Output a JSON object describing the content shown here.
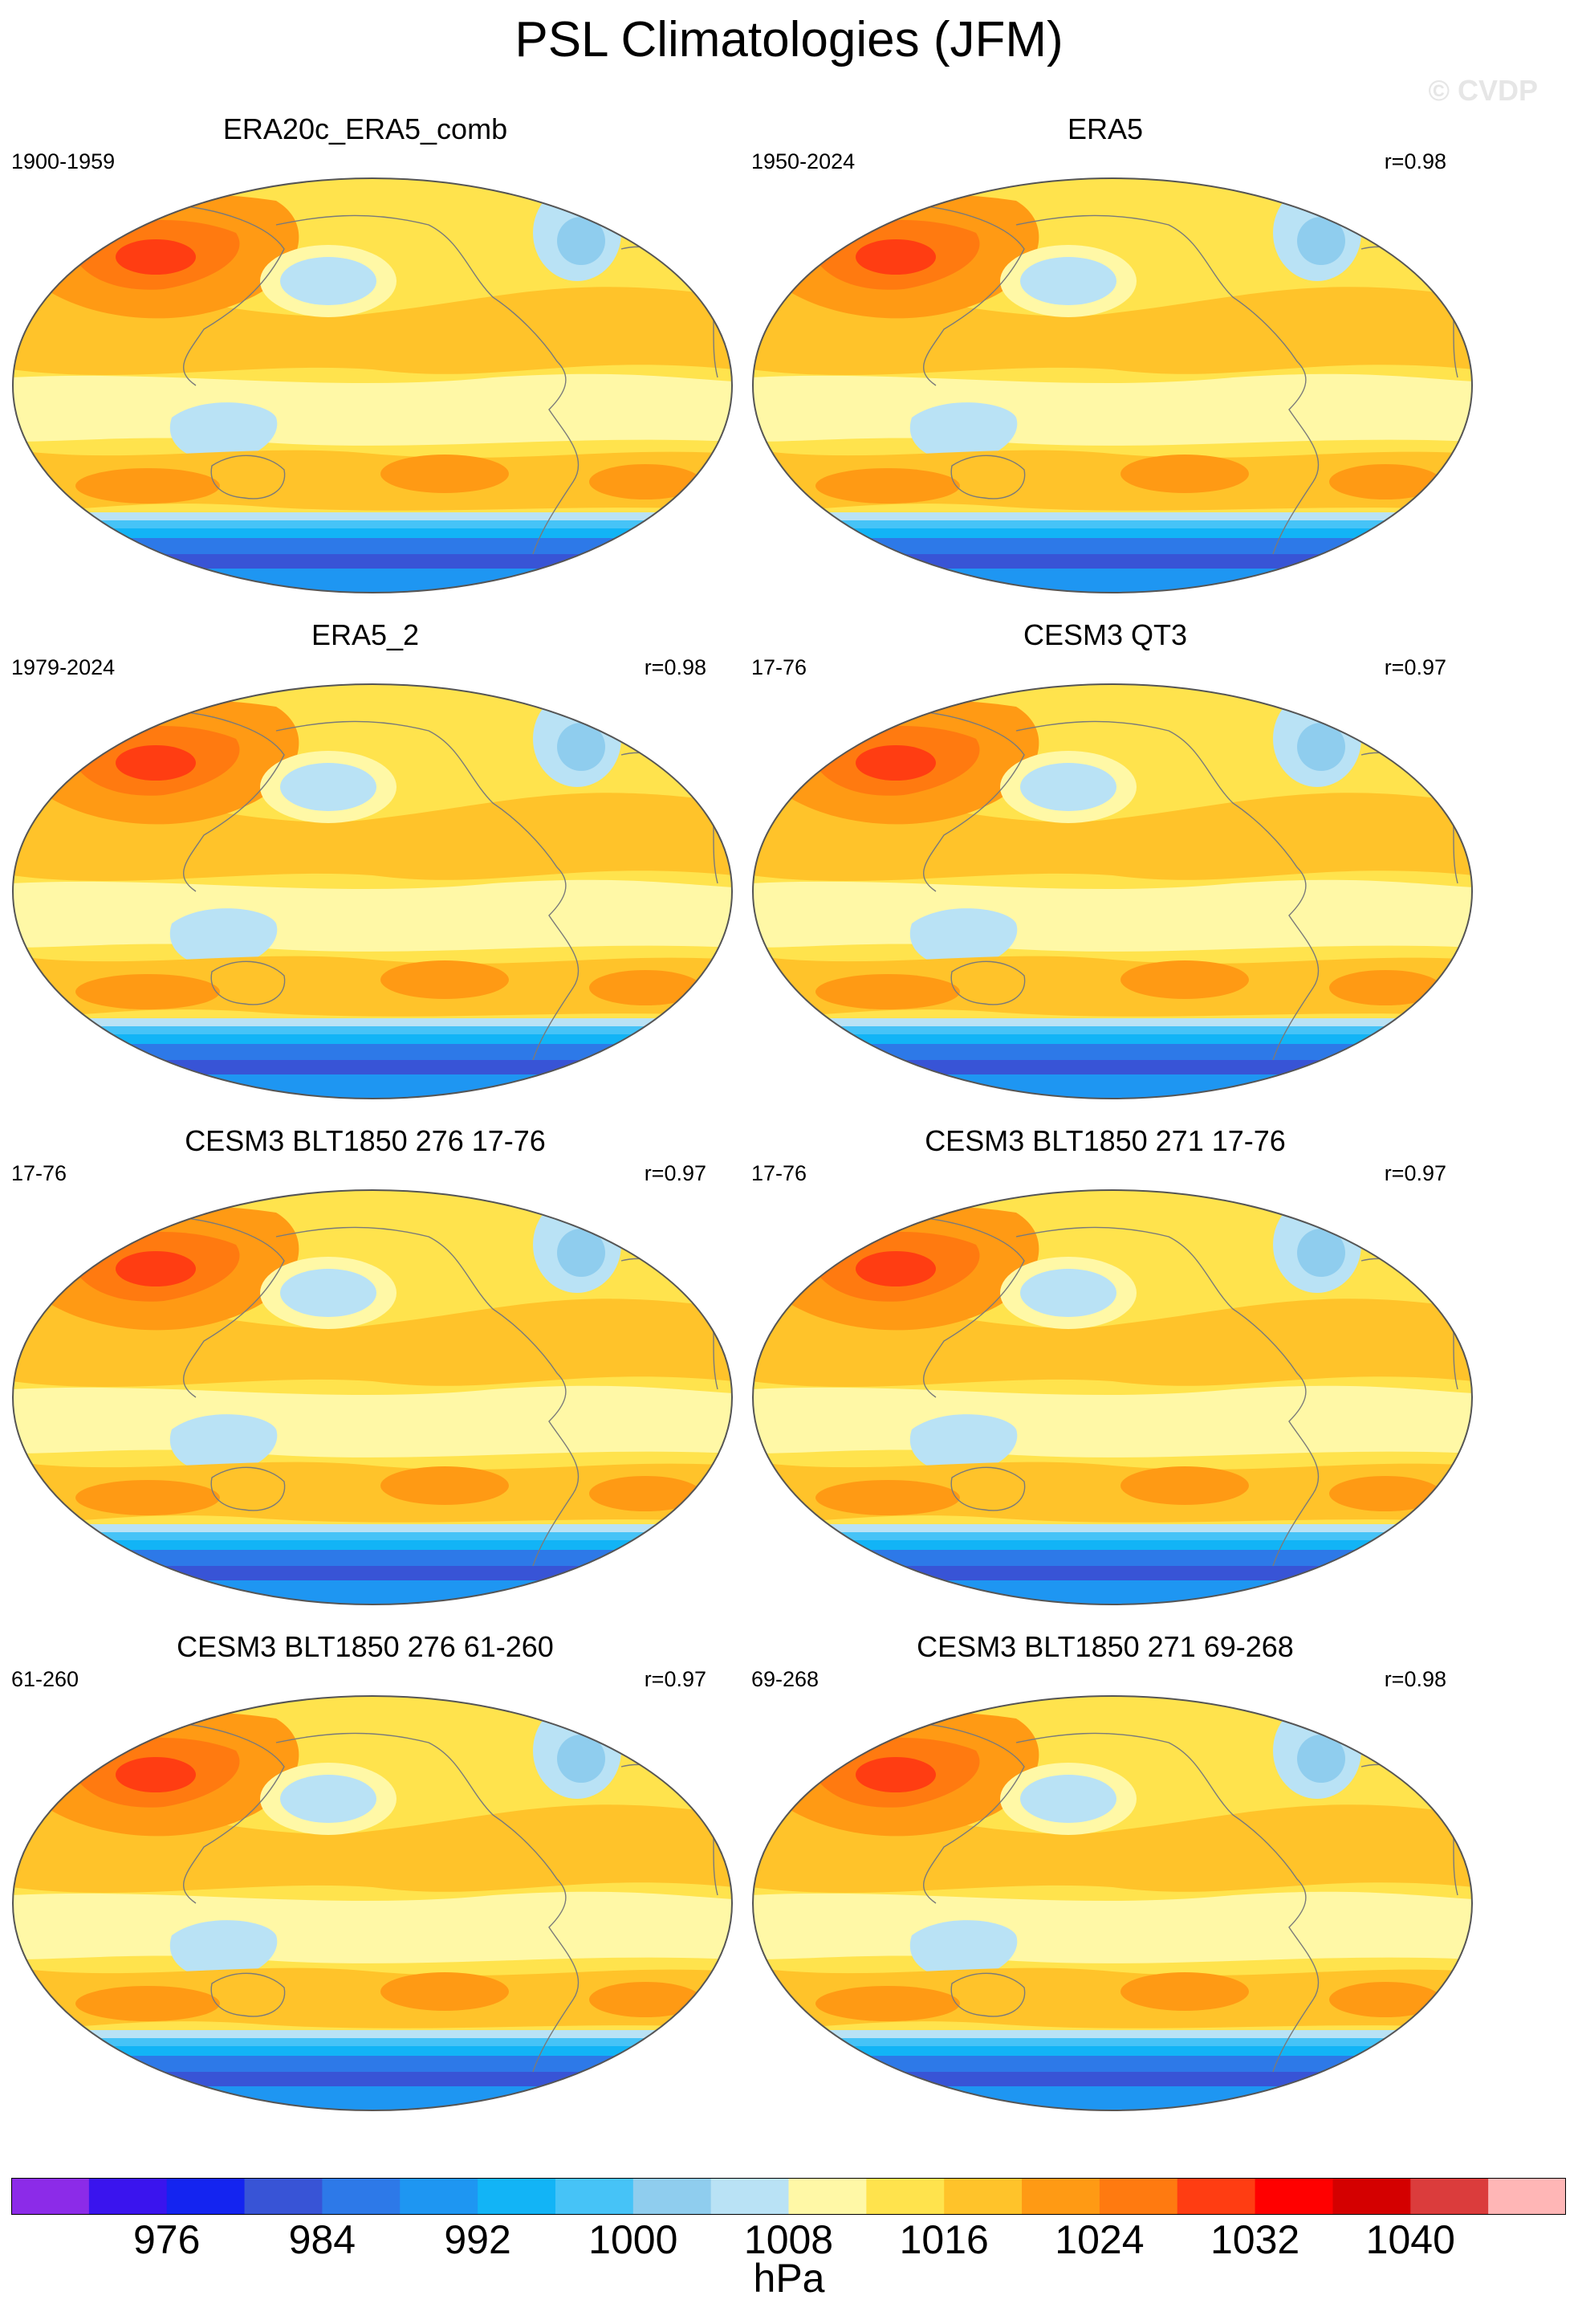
{
  "title": "PSL Climatologies (JFM)",
  "watermark": "© CVDP",
  "colors": {
    "levels": [
      "#8c2be8",
      "#3a14ee",
      "#1424f0",
      "#3854d6",
      "#2d79e8",
      "#1e96f2",
      "#12b4f6",
      "#46c3f7",
      "#8fcdee",
      "#b9e2f5",
      "#fff8a6",
      "#ffe34d",
      "#ffc32a",
      "#ff9a14",
      "#ff7a10",
      "#ff3d12",
      "#ff0000",
      "#d40000",
      "#db3c3c",
      "#ffb6b6"
    ],
    "coastline": "#7a7a7a"
  },
  "chart_data": {
    "type": "heatmap",
    "variable": "PSL",
    "season": "JFM",
    "units": "hPa",
    "colorbar_ticks": [
      "976",
      "984",
      "992",
      "1000",
      "1008",
      "1016",
      "1024",
      "1032",
      "1040"
    ],
    "panels": [
      {
        "title": "ERA20c_ERA5_comb",
        "period": "1900-1959",
        "corr": ""
      },
      {
        "title": "ERA5",
        "period": "1950-2024",
        "corr": "r=0.98"
      },
      {
        "title": "ERA5_2",
        "period": "1979-2024",
        "corr": "r=0.98"
      },
      {
        "title": "CESM3 QT3",
        "period": "17-76",
        "corr": "r=0.97"
      },
      {
        "title": "CESM3 BLT1850 276 17-76",
        "period": "17-76",
        "corr": "r=0.97"
      },
      {
        "title": "CESM3 BLT1850 271 17-76",
        "period": "17-76",
        "corr": "r=0.97"
      },
      {
        "title": "CESM3 BLT1850 276 61-260",
        "period": "61-260",
        "corr": "r=0.97"
      },
      {
        "title": "CESM3 BLT1850 271 69-268",
        "period": "69-268",
        "corr": "r=0.98"
      }
    ]
  }
}
